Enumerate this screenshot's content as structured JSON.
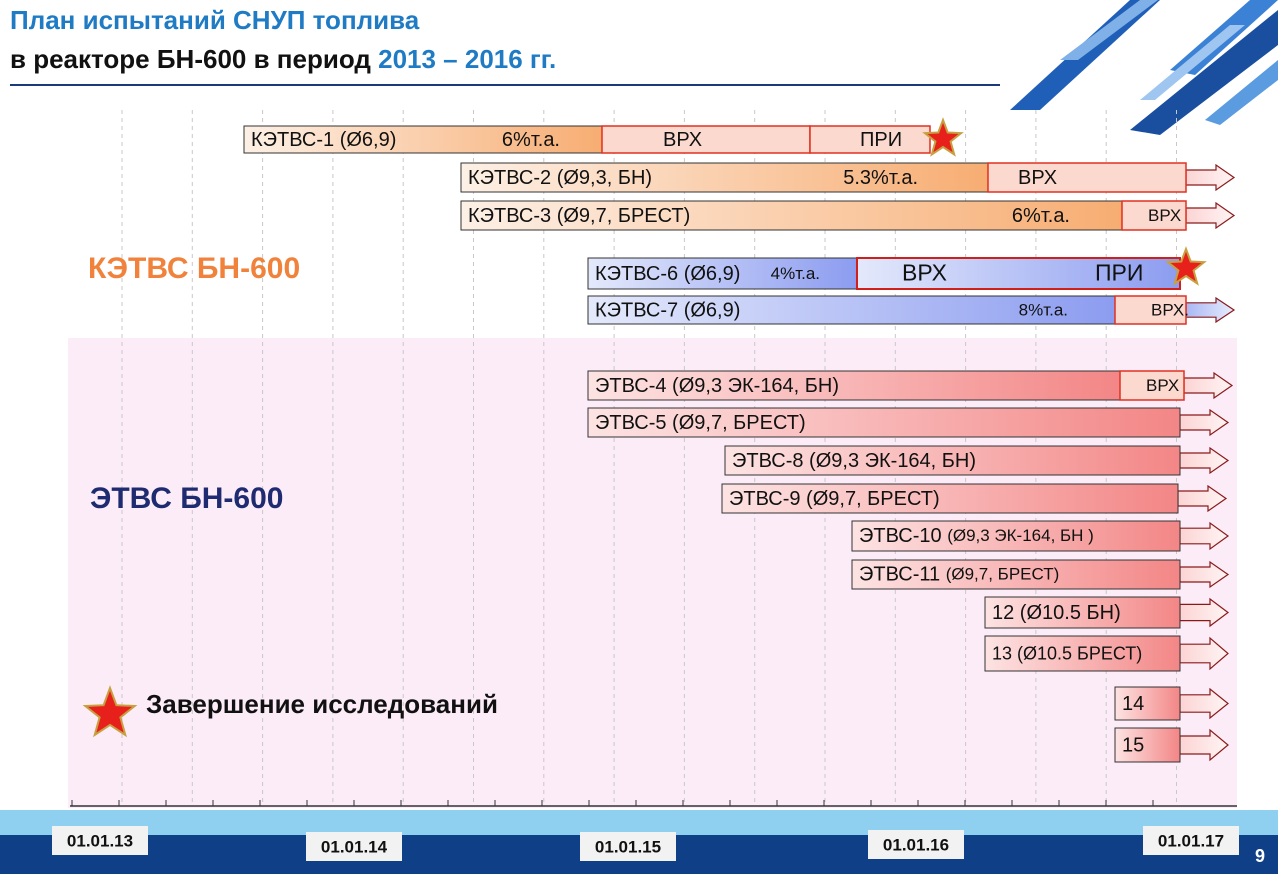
{
  "header": {
    "title_line1": "План испытаний СНУП топлива",
    "title_line2": "в реакторе БН-600 в период",
    "title_period": "2013 – 2016 гг."
  },
  "groups": [
    "КЭТВС БН-600",
    "ЭТВС БН-600"
  ],
  "legend": {
    "label": "Завершение исследований"
  },
  "bars": [
    {
      "label": "КЭТВС-1 (Ø6,9)",
      "burnup": "6%т.а.",
      "stages": [
        "ВРХ",
        "ПРИ"
      ]
    },
    {
      "label": "КЭТВС-2 (Ø9,3, БН)",
      "burnup": "5.3%т.а.",
      "stages": [
        "ВРХ"
      ]
    },
    {
      "label": "КЭТВС-3 (Ø9,7, БРЕСТ)",
      "burnup": "6%т.а.",
      "stages": [
        "ВРХ"
      ]
    },
    {
      "label": "КЭТВС-6 (Ø6,9)",
      "burnup": "4%т.а.",
      "stages": [
        "ВРХ",
        "ПРИ"
      ]
    },
    {
      "label": "КЭТВС-7 (Ø6,9)",
      "burnup": "8%т.а.",
      "stages": [
        "ВРХ."
      ]
    },
    {
      "label": "ЭТВС-4 (Ø9,3 ЭК-164, БН)",
      "stages": [
        "ВРХ"
      ]
    },
    {
      "label": "ЭТВС-5 (Ø9,7, БРЕСТ)"
    },
    {
      "label": "ЭТВС-8 (Ø9,3 ЭК-164,  БН)"
    },
    {
      "label": "ЭТВС-9 (Ø9,7, БРЕСТ)"
    },
    {
      "label": "ЭТВС-10",
      "detail": "(Ø9,3 ЭК-164, БН )"
    },
    {
      "label": "ЭТВС-11",
      "detail": "(Ø9,7, БРЕСТ)"
    },
    {
      "label": "12 (Ø10.5 БН)"
    },
    {
      "label": "13 (Ø10.5 БРЕСТ)"
    },
    {
      "label": "14"
    },
    {
      "label": "15"
    }
  ],
  "axis": {
    "dates": [
      "01.01.13",
      "01.01.14",
      "01.01.15",
      "01.01.16",
      "01.01.17"
    ]
  },
  "page_number": "9"
}
